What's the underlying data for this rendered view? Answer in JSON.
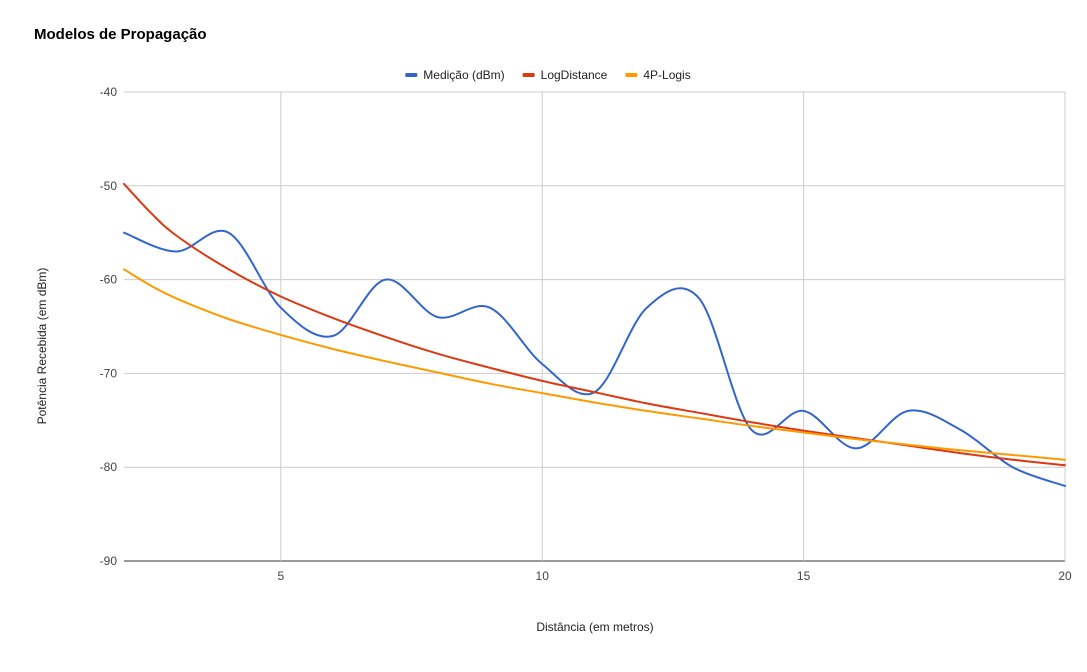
{
  "chart_data": {
    "type": "line",
    "title": "Modelos de Propagação",
    "xlabel": "Distância (em metros)",
    "ylabel": "Potência Recebida (em dBm)",
    "xlim": [
      2,
      20
    ],
    "ylim": [
      -90,
      -40
    ],
    "x_ticks": [
      5,
      10,
      15,
      20
    ],
    "y_ticks": [
      -40,
      -50,
      -60,
      -70,
      -80,
      -90
    ],
    "grid": true,
    "legend_position": "top-center",
    "series": [
      {
        "name": "Medição (dBm)",
        "color": "#3366cc",
        "x": [
          2,
          3,
          4,
          5,
          6,
          7,
          8,
          9,
          10,
          11,
          12,
          13,
          14,
          15,
          16,
          17,
          18,
          19,
          20
        ],
        "y": [
          -55,
          -57,
          -55,
          -63,
          -66,
          -60,
          -64,
          -63,
          -69,
          -72,
          -63,
          -62,
          -76,
          -74,
          -78,
          -74,
          -76,
          -80,
          -82
        ]
      },
      {
        "name": "LogDistance",
        "color": "#dc3912",
        "x": [
          2,
          2.5,
          3,
          4,
          5,
          6,
          7,
          8,
          9,
          10,
          11,
          12,
          13,
          14,
          15,
          16,
          17,
          18,
          19,
          20
        ],
        "y": [
          -49.8,
          -52.8,
          -55.3,
          -58.9,
          -61.8,
          -64.1,
          -66.1,
          -67.9,
          -69.4,
          -70.8,
          -72.0,
          -73.2,
          -74.2,
          -75.2,
          -76.1,
          -76.9,
          -77.7,
          -78.5,
          -79.2,
          -79.8
        ]
      },
      {
        "name": "4P-Logis",
        "color": "#ff9900",
        "x": [
          2,
          2.5,
          3,
          4,
          5,
          6,
          7,
          8,
          9,
          10,
          11,
          12,
          13,
          14,
          15,
          16,
          17,
          18,
          19,
          20
        ],
        "y": [
          -58.9,
          -60.6,
          -62.0,
          -64.2,
          -65.9,
          -67.4,
          -68.7,
          -69.9,
          -71.1,
          -72.1,
          -73.1,
          -74.0,
          -74.8,
          -75.6,
          -76.3,
          -77.0,
          -77.6,
          -78.2,
          -78.7,
          -79.2
        ]
      }
    ]
  }
}
